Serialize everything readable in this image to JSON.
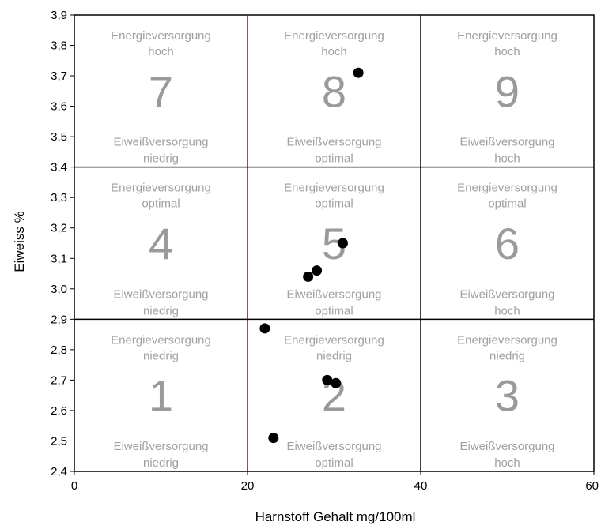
{
  "chart_data": {
    "type": "scatter",
    "xlabel": "Harnstoff Gehalt mg/100ml",
    "ylabel": "Eiweiss %",
    "xlim": [
      0,
      60
    ],
    "ylim": [
      2.4,
      3.9
    ],
    "x_ticks": [
      "0",
      "20",
      "40",
      "60"
    ],
    "y_ticks": [
      "2,4",
      "2,5",
      "2,6",
      "2,7",
      "2,8",
      "2,9",
      "3,0",
      "3,1",
      "3,2",
      "3,3",
      "3,4",
      "3,5",
      "3,6",
      "3,7",
      "3,8",
      "3,9"
    ],
    "divisions": {
      "x": [
        20,
        40
      ],
      "y": [
        2.9,
        3.4
      ]
    },
    "divider_colors": {
      "x20": "#6b1a1a",
      "default": "#000000"
    },
    "points": [
      {
        "x": 32.8,
        "y": 3.71
      },
      {
        "x": 31.0,
        "y": 3.15
      },
      {
        "x": 28.0,
        "y": 3.06
      },
      {
        "x": 27.0,
        "y": 3.04
      },
      {
        "x": 22.0,
        "y": 2.87
      },
      {
        "x": 29.2,
        "y": 2.7
      },
      {
        "x": 30.2,
        "y": 2.69
      },
      {
        "x": 23.0,
        "y": 2.51
      }
    ],
    "cells": [
      {
        "number": "1",
        "col": 0,
        "row": 0,
        "energy": [
          "Energieversorgung",
          "niedrig"
        ],
        "protein": [
          "Eiweißversorgung",
          "niedrig"
        ]
      },
      {
        "number": "2",
        "col": 1,
        "row": 0,
        "energy": [
          "Energieversorgung",
          "niedrig"
        ],
        "protein": [
          "Eiweißversorgung",
          "optimal"
        ]
      },
      {
        "number": "3",
        "col": 2,
        "row": 0,
        "energy": [
          "Energieversorgung",
          "niedrig"
        ],
        "protein": [
          "Eiweißversorgung",
          "hoch"
        ]
      },
      {
        "number": "4",
        "col": 0,
        "row": 1,
        "energy": [
          "Energieversorgung",
          "optimal"
        ],
        "protein": [
          "Eiweißversorgung",
          "niedrig"
        ]
      },
      {
        "number": "5",
        "col": 1,
        "row": 1,
        "energy": [
          "Energieversorgung",
          "optimal"
        ],
        "protein": [
          "Eiweißversorgung",
          "optimal"
        ]
      },
      {
        "number": "6",
        "col": 2,
        "row": 1,
        "energy": [
          "Energieversorgung",
          "optimal"
        ],
        "protein": [
          "Eiweißversorgung",
          "hoch"
        ]
      },
      {
        "number": "7",
        "col": 0,
        "row": 2,
        "energy": [
          "Energieversorgung",
          "hoch"
        ],
        "protein": [
          "Eiweißversorgung",
          "niedrig"
        ]
      },
      {
        "number": "8",
        "col": 1,
        "row": 2,
        "energy": [
          "Energieversorgung",
          "hoch"
        ],
        "protein": [
          "Eiweißversorgung",
          "optimal"
        ]
      },
      {
        "number": "9",
        "col": 2,
        "row": 2,
        "energy": [
          "Energieversorgung",
          "hoch"
        ],
        "protein": [
          "Eiweißversorgung",
          "hoch"
        ]
      }
    ],
    "colors": {
      "cell_text": "#a0a0a0",
      "cell_number": "#9a9a9a",
      "points": "#000000",
      "frame": "#000000"
    },
    "grid": false,
    "legend": "none"
  }
}
